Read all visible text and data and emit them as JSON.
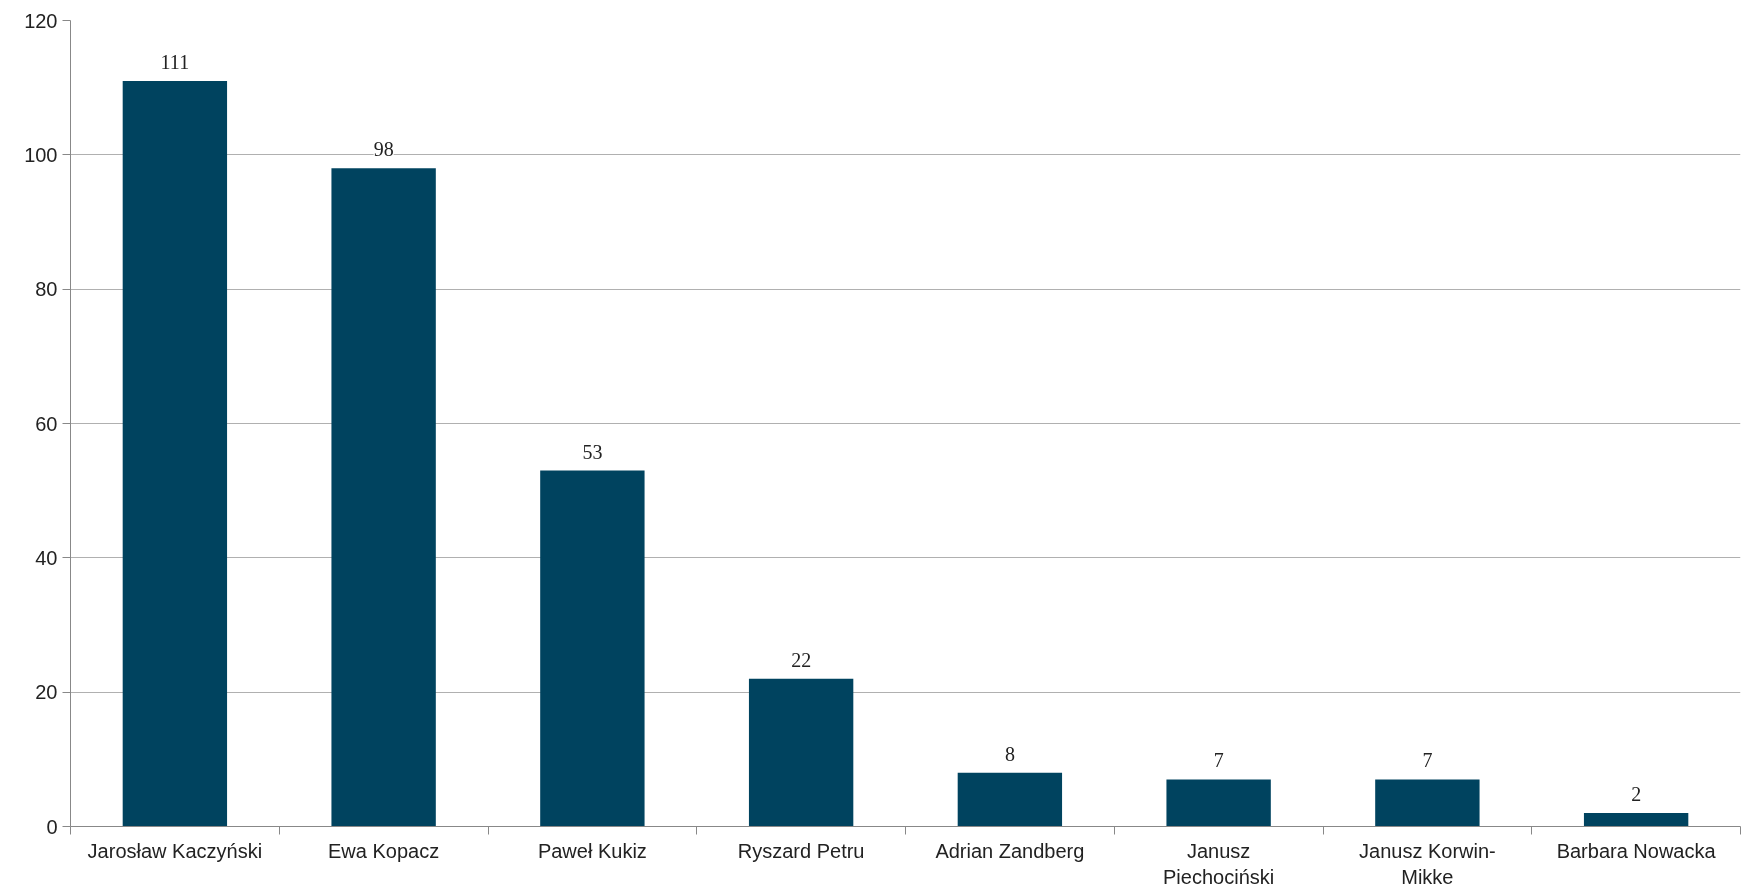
{
  "chart_data": {
    "type": "bar",
    "categories": [
      "Jarosław Kaczyński",
      "Ewa Kopacz",
      "Paweł Kukiz",
      "Ryszard Petru",
      "Adrian Zandberg",
      "Janusz Piechociński",
      "Janusz Korwin-Mikke",
      "Barbara Nowacka"
    ],
    "values": [
      111,
      98,
      53,
      22,
      8,
      7,
      7,
      2
    ],
    "color": "#00435f",
    "ylim": [
      0,
      120
    ],
    "yticks": [
      0,
      20,
      40,
      60,
      80,
      100,
      120
    ],
    "grid": "y",
    "data_labels": true
  }
}
